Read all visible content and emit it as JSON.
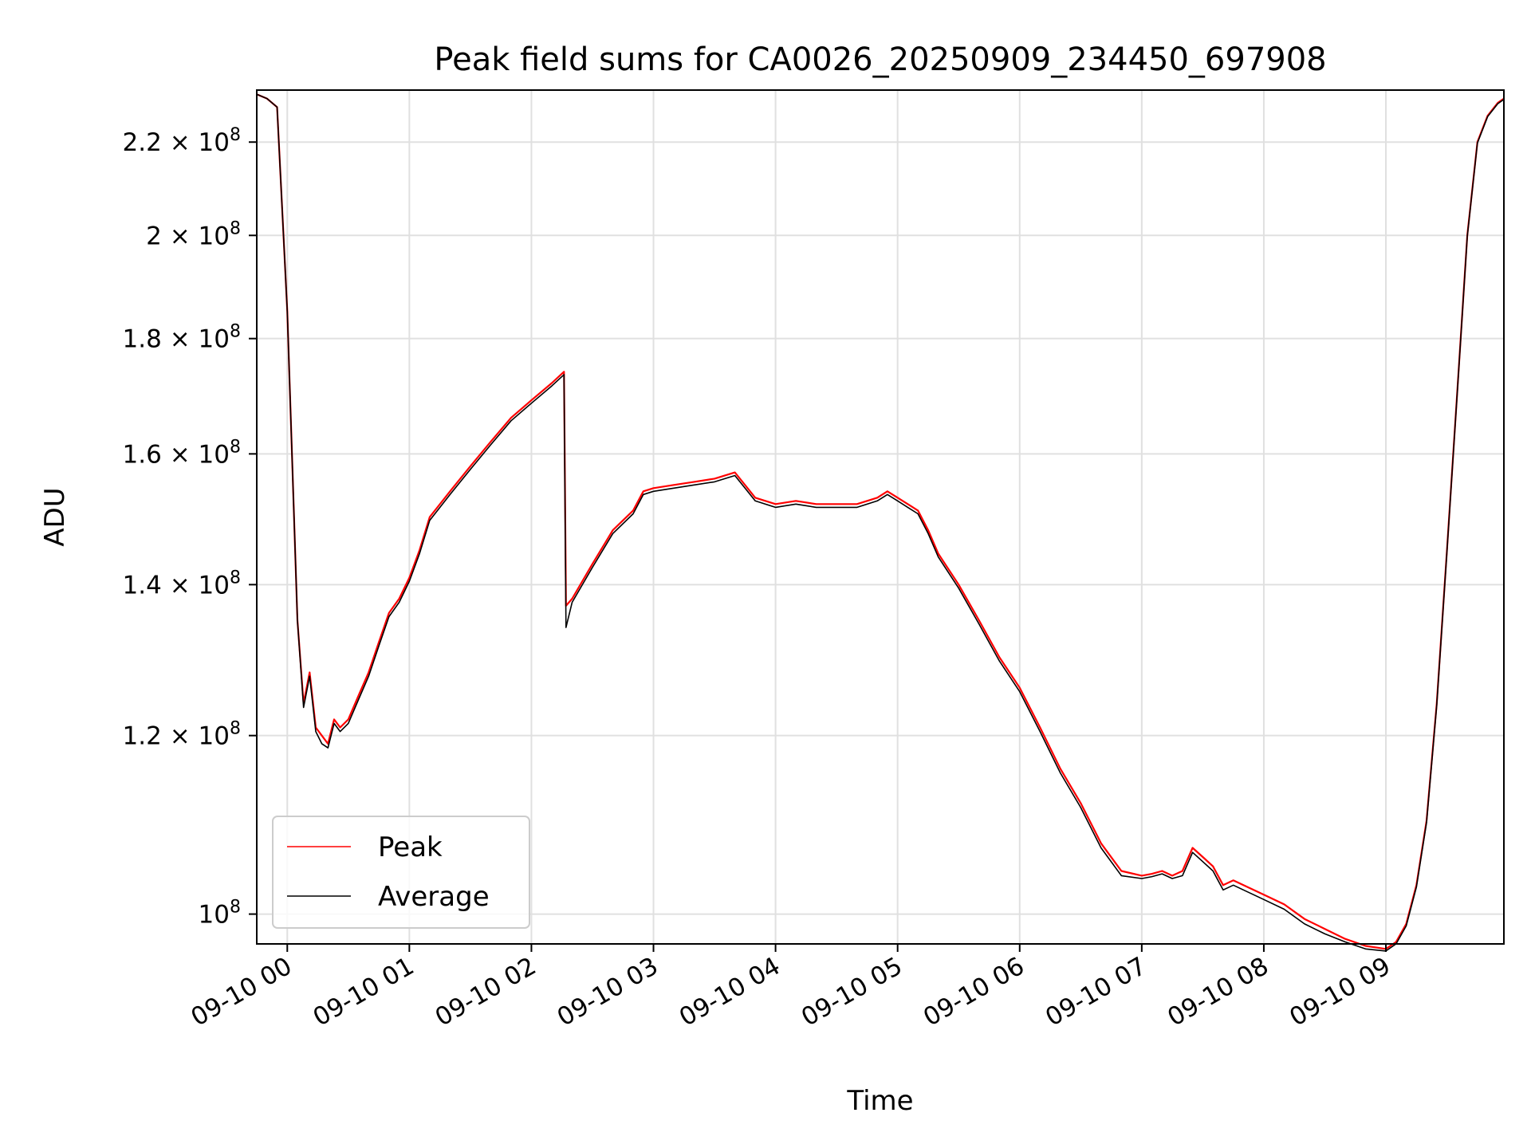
{
  "chart_data": {
    "type": "line",
    "title": "Peak field sums for CA0026_20250909_234450_697908",
    "xlabel": "Time",
    "ylabel": "ADU",
    "yscale": "log",
    "grid": true,
    "legend_position": "lower-left",
    "x_ticks": [
      {
        "label": "09-10 00",
        "time": "2025-09-10T00:00"
      },
      {
        "label": "09-10 01",
        "time": "2025-09-10T01:00"
      },
      {
        "label": "09-10 02",
        "time": "2025-09-10T02:00"
      },
      {
        "label": "09-10 03",
        "time": "2025-09-10T03:00"
      },
      {
        "label": "09-10 04",
        "time": "2025-09-10T04:00"
      },
      {
        "label": "09-10 05",
        "time": "2025-09-10T05:00"
      },
      {
        "label": "09-10 06",
        "time": "2025-09-10T06:00"
      },
      {
        "label": "09-10 07",
        "time": "2025-09-10T07:00"
      },
      {
        "label": "09-10 08",
        "time": "2025-09-10T08:00"
      },
      {
        "label": "09-10 09",
        "time": "2025-09-10T09:00"
      }
    ],
    "y_ticks": [
      {
        "value": 100000000,
        "mantissa": "",
        "exponent": "8"
      },
      {
        "value": 120000000,
        "mantissa": "1.2",
        "exponent": "8"
      },
      {
        "value": 140000000,
        "mantissa": "1.4",
        "exponent": "8"
      },
      {
        "value": 160000000,
        "mantissa": "1.6",
        "exponent": "8"
      },
      {
        "value": 180000000,
        "mantissa": "1.8",
        "exponent": "8"
      },
      {
        "value": 200000000,
        "mantissa": "2",
        "exponent": "8"
      },
      {
        "value": 220000000,
        "mantissa": "2.2",
        "exponent": "8"
      }
    ],
    "xlim": [
      "2025-09-09T23:45",
      "2025-09-10T09:58"
    ],
    "ylim": [
      97000000,
      232000000
    ],
    "series": [
      {
        "name": "Peak",
        "color": "#ff0000",
        "x": [
          "2025-09-09T23:45",
          "2025-09-09T23:50",
          "2025-09-09T23:55",
          "2025-09-10T00:00",
          "2025-09-10T00:05",
          "2025-09-10T00:08",
          "2025-09-10T00:11",
          "2025-09-10T00:14",
          "2025-09-10T00:17",
          "2025-09-10T00:20",
          "2025-09-10T00:23",
          "2025-09-10T00:26",
          "2025-09-10T00:30",
          "2025-09-10T00:35",
          "2025-09-10T00:40",
          "2025-09-10T00:45",
          "2025-09-10T00:50",
          "2025-09-10T00:55",
          "2025-09-10T01:00",
          "2025-09-10T01:05",
          "2025-09-10T01:10",
          "2025-09-10T01:20",
          "2025-09-10T01:30",
          "2025-09-10T01:40",
          "2025-09-10T01:50",
          "2025-09-10T02:00",
          "2025-09-10T02:10",
          "2025-09-10T02:16",
          "2025-09-10T02:17",
          "2025-09-10T02:20",
          "2025-09-10T02:30",
          "2025-09-10T02:40",
          "2025-09-10T02:50",
          "2025-09-10T02:55",
          "2025-09-10T03:00",
          "2025-09-10T03:10",
          "2025-09-10T03:20",
          "2025-09-10T03:30",
          "2025-09-10T03:40",
          "2025-09-10T03:45",
          "2025-09-10T03:50",
          "2025-09-10T04:00",
          "2025-09-10T04:10",
          "2025-09-10T04:20",
          "2025-09-10T04:30",
          "2025-09-10T04:40",
          "2025-09-10T04:50",
          "2025-09-10T04:55",
          "2025-09-10T05:00",
          "2025-09-10T05:05",
          "2025-09-10T05:10",
          "2025-09-10T05:15",
          "2025-09-10T05:20",
          "2025-09-10T05:30",
          "2025-09-10T05:40",
          "2025-09-10T05:50",
          "2025-09-10T06:00",
          "2025-09-10T06:10",
          "2025-09-10T06:20",
          "2025-09-10T06:30",
          "2025-09-10T06:40",
          "2025-09-10T06:50",
          "2025-09-10T07:00",
          "2025-09-10T07:05",
          "2025-09-10T07:10",
          "2025-09-10T07:15",
          "2025-09-10T07:20",
          "2025-09-10T07:25",
          "2025-09-10T07:30",
          "2025-09-10T07:35",
          "2025-09-10T07:40",
          "2025-09-10T07:45",
          "2025-09-10T07:50",
          "2025-09-10T08:00",
          "2025-09-10T08:10",
          "2025-09-10T08:20",
          "2025-09-10T08:30",
          "2025-09-10T08:40",
          "2025-09-10T08:50",
          "2025-09-10T09:00",
          "2025-09-10T09:05",
          "2025-09-10T09:10",
          "2025-09-10T09:15",
          "2025-09-10T09:20",
          "2025-09-10T09:25",
          "2025-09-10T09:30",
          "2025-09-10T09:35",
          "2025-09-10T09:40",
          "2025-09-10T09:45",
          "2025-09-10T09:50",
          "2025-09-10T09:55",
          "2025-09-10T09:58"
        ],
        "y": [
          231000000,
          230000000,
          228000000,
          185000000,
          135000000,
          124000000,
          128000000,
          121000000,
          120000000,
          119000000,
          122000000,
          121000000,
          122000000,
          125000000,
          128000000,
          132000000,
          136000000,
          138000000,
          141000000,
          145000000,
          150000000,
          154000000,
          158000000,
          162000000,
          166000000,
          169000000,
          172000000,
          174000000,
          137000000,
          138000000,
          143000000,
          148000000,
          151000000,
          154000000,
          154500000,
          155000000,
          155500000,
          156000000,
          157000000,
          155000000,
          153000000,
          152000000,
          152500000,
          152000000,
          152000000,
          152000000,
          153000000,
          154000000,
          153000000,
          152000000,
          151000000,
          148000000,
          144500000,
          140000000,
          135000000,
          130000000,
          126000000,
          121000000,
          116000000,
          112000000,
          107500000,
          104500000,
          104000000,
          104200000,
          104500000,
          104000000,
          104500000,
          107000000,
          106000000,
          105000000,
          103000000,
          103500000,
          103000000,
          102000000,
          101000000,
          99500000,
          98500000,
          97500000,
          96800000,
          96500000,
          97200000,
          99000000,
          103000000,
          110000000,
          124000000,
          145000000,
          170000000,
          200000000,
          220000000,
          226000000,
          229000000,
          230000000
        ]
      },
      {
        "name": "Average",
        "color": "#000000",
        "x": [
          "2025-09-09T23:45",
          "2025-09-09T23:50",
          "2025-09-09T23:55",
          "2025-09-10T00:00",
          "2025-09-10T00:05",
          "2025-09-10T00:08",
          "2025-09-10T00:11",
          "2025-09-10T00:14",
          "2025-09-10T00:17",
          "2025-09-10T00:20",
          "2025-09-10T00:23",
          "2025-09-10T00:26",
          "2025-09-10T00:30",
          "2025-09-10T00:35",
          "2025-09-10T00:40",
          "2025-09-10T00:45",
          "2025-09-10T00:50",
          "2025-09-10T00:55",
          "2025-09-10T01:00",
          "2025-09-10T01:05",
          "2025-09-10T01:10",
          "2025-09-10T01:20",
          "2025-09-10T01:30",
          "2025-09-10T01:40",
          "2025-09-10T01:50",
          "2025-09-10T02:00",
          "2025-09-10T02:10",
          "2025-09-10T02:16",
          "2025-09-10T02:17",
          "2025-09-10T02:20",
          "2025-09-10T02:30",
          "2025-09-10T02:40",
          "2025-09-10T02:50",
          "2025-09-10T02:55",
          "2025-09-10T03:00",
          "2025-09-10T03:10",
          "2025-09-10T03:20",
          "2025-09-10T03:30",
          "2025-09-10T03:40",
          "2025-09-10T03:45",
          "2025-09-10T03:50",
          "2025-09-10T04:00",
          "2025-09-10T04:10",
          "2025-09-10T04:20",
          "2025-09-10T04:30",
          "2025-09-10T04:40",
          "2025-09-10T04:50",
          "2025-09-10T04:55",
          "2025-09-10T05:00",
          "2025-09-10T05:05",
          "2025-09-10T05:10",
          "2025-09-10T05:15",
          "2025-09-10T05:20",
          "2025-09-10T05:30",
          "2025-09-10T05:40",
          "2025-09-10T05:50",
          "2025-09-10T06:00",
          "2025-09-10T06:10",
          "2025-09-10T06:20",
          "2025-09-10T06:30",
          "2025-09-10T06:40",
          "2025-09-10T06:50",
          "2025-09-10T07:00",
          "2025-09-10T07:05",
          "2025-09-10T07:10",
          "2025-09-10T07:15",
          "2025-09-10T07:20",
          "2025-09-10T07:25",
          "2025-09-10T07:30",
          "2025-09-10T07:35",
          "2025-09-10T07:40",
          "2025-09-10T07:45",
          "2025-09-10T07:50",
          "2025-09-10T08:00",
          "2025-09-10T08:10",
          "2025-09-10T08:20",
          "2025-09-10T08:30",
          "2025-09-10T08:40",
          "2025-09-10T08:50",
          "2025-09-10T09:00",
          "2025-09-10T09:05",
          "2025-09-10T09:10",
          "2025-09-10T09:15",
          "2025-09-10T09:20",
          "2025-09-10T09:25",
          "2025-09-10T09:30",
          "2025-09-10T09:35",
          "2025-09-10T09:40",
          "2025-09-10T09:45",
          "2025-09-10T09:50",
          "2025-09-10T09:55",
          "2025-09-10T09:58"
        ],
        "y": [
          231000000,
          230000000,
          228000000,
          185000000,
          135000000,
          123500000,
          127500000,
          120500000,
          119000000,
          118500000,
          121500000,
          120500000,
          121500000,
          124500000,
          127500000,
          131500000,
          135500000,
          137500000,
          140500000,
          144500000,
          149500000,
          153500000,
          157500000,
          161500000,
          165500000,
          168500000,
          171500000,
          173500000,
          134000000,
          137500000,
          142500000,
          147500000,
          150500000,
          153500000,
          154000000,
          154500000,
          155000000,
          155500000,
          156500000,
          154500000,
          152500000,
          151500000,
          152000000,
          151500000,
          151500000,
          151500000,
          152500000,
          153500000,
          152500000,
          151500000,
          150500000,
          147500000,
          144000000,
          139500000,
          134500000,
          129500000,
          125500000,
          120500000,
          115500000,
          111500000,
          107000000,
          104000000,
          103700000,
          103900000,
          104200000,
          103700000,
          104000000,
          106500000,
          105500000,
          104500000,
          102500000,
          103000000,
          102500000,
          101500000,
          100500000,
          99000000,
          98000000,
          97200000,
          96500000,
          96300000,
          97000000,
          98800000,
          102800000,
          109800000,
          123800000,
          144800000,
          169800000,
          199800000,
          219800000,
          225800000,
          228800000,
          229800000
        ]
      }
    ]
  }
}
